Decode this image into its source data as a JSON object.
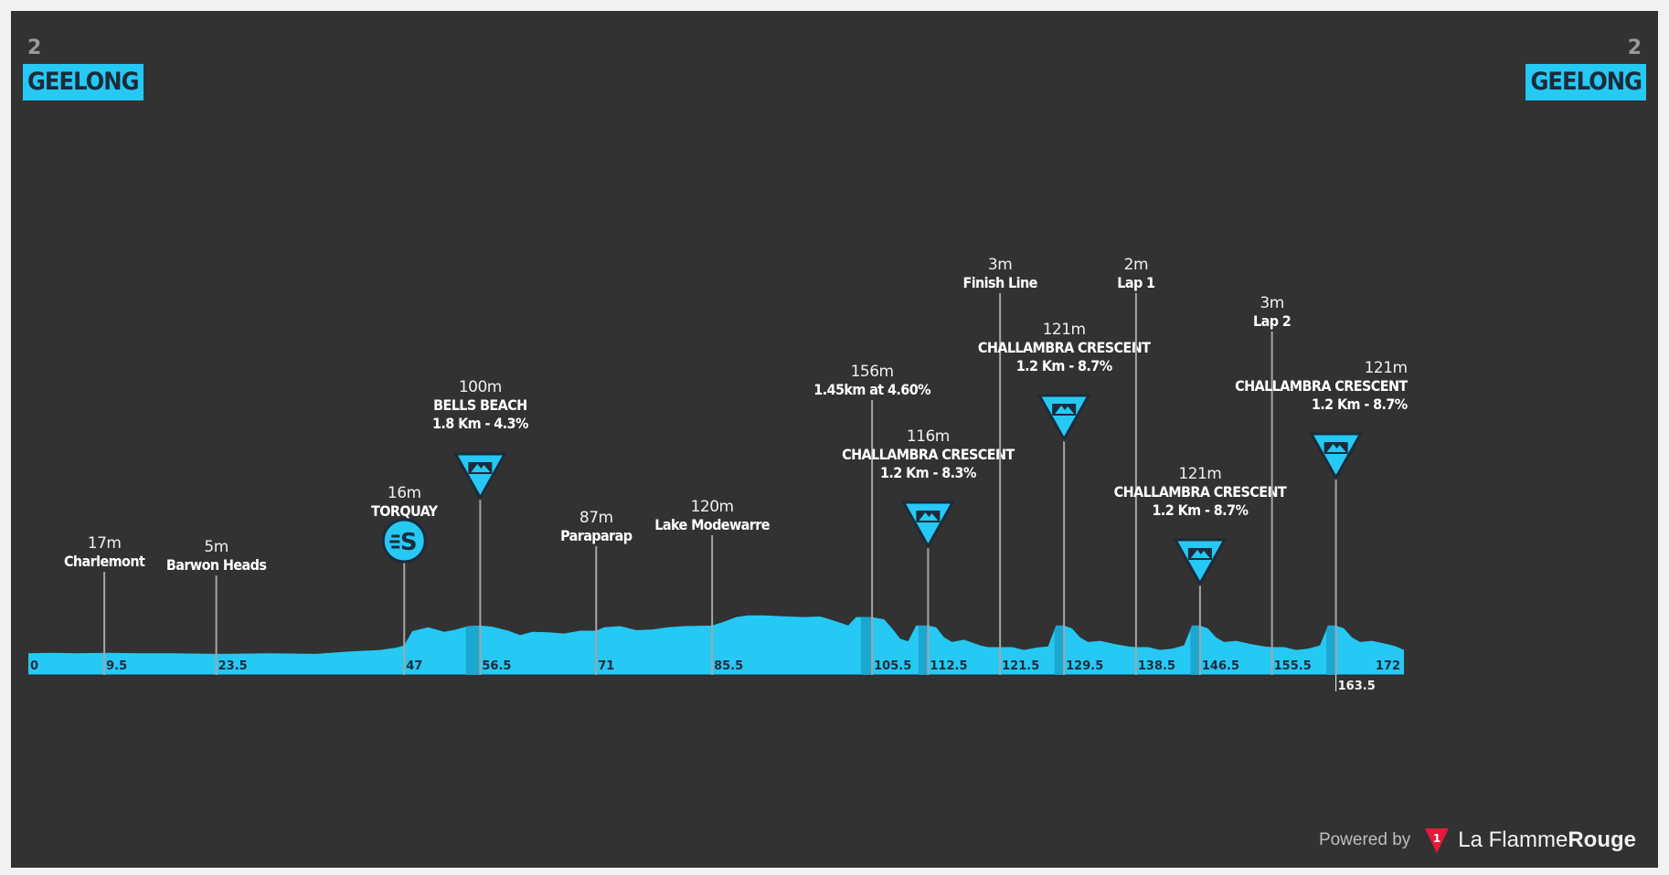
{
  "header": {
    "start_stage": "2",
    "start_city": "GEELONG",
    "finish_stage": "2",
    "finish_city": "GEELONG"
  },
  "footer": {
    "powered_by": "Powered by",
    "brand_light": "La Flamme",
    "brand_bold": "Rouge"
  },
  "colors": {
    "background": "#323232",
    "profile": "#25c9f4",
    "profile_dark": "#1aa3cc",
    "marker": "#a6a6a6",
    "badge": "#25c9f4"
  },
  "chart_data": {
    "type": "area",
    "title": "",
    "xlabel": "",
    "ylabel": "",
    "xlim": [
      0,
      172
    ],
    "ylim": [
      0,
      160
    ],
    "grid": false,
    "x_tick_labels": [
      {
        "x": 0,
        "label": "0"
      },
      {
        "x": 9.5,
        "label": "9.5"
      },
      {
        "x": 23.5,
        "label": "23.5"
      },
      {
        "x": 47,
        "label": "47"
      },
      {
        "x": 56.5,
        "label": "56.5"
      },
      {
        "x": 71,
        "label": "71"
      },
      {
        "x": 85.5,
        "label": "85.5"
      },
      {
        "x": 105.5,
        "label": "105.5"
      },
      {
        "x": 112.5,
        "label": "112.5"
      },
      {
        "x": 121.5,
        "label": "121.5"
      },
      {
        "x": 129.5,
        "label": "129.5"
      },
      {
        "x": 138.5,
        "label": "138.5"
      },
      {
        "x": 146.5,
        "label": "146.5"
      },
      {
        "x": 155.5,
        "label": "155.5"
      },
      {
        "x": 163.5,
        "label": "163.5"
      },
      {
        "x": 172,
        "label": "172"
      }
    ],
    "profile": [
      [
        0,
        6
      ],
      [
        3,
        7
      ],
      [
        6,
        6
      ],
      [
        9.5,
        7
      ],
      [
        14,
        6
      ],
      [
        18,
        6
      ],
      [
        23.5,
        5
      ],
      [
        30,
        6
      ],
      [
        36,
        5
      ],
      [
        40,
        9
      ],
      [
        44,
        12
      ],
      [
        46,
        16
      ],
      [
        47,
        20
      ],
      [
        48,
        45
      ],
      [
        50,
        52
      ],
      [
        52,
        44
      ],
      [
        53.5,
        48
      ],
      [
        55,
        54
      ],
      [
        56.5,
        55
      ],
      [
        58,
        53
      ],
      [
        60,
        46
      ],
      [
        61.5,
        38
      ],
      [
        63,
        44
      ],
      [
        65,
        43
      ],
      [
        67,
        41
      ],
      [
        69,
        46
      ],
      [
        71,
        46
      ],
      [
        72,
        52
      ],
      [
        74,
        54
      ],
      [
        76,
        47
      ],
      [
        78,
        48
      ],
      [
        80,
        52
      ],
      [
        82,
        54
      ],
      [
        85.5,
        55
      ],
      [
        87,
        62
      ],
      [
        88.5,
        70
      ],
      [
        90,
        73
      ],
      [
        92,
        73
      ],
      [
        95,
        71
      ],
      [
        97,
        70
      ],
      [
        99,
        71
      ],
      [
        100,
        67
      ],
      [
        101.5,
        60
      ],
      [
        102.5,
        55
      ],
      [
        103.5,
        70
      ],
      [
        105.5,
        70
      ],
      [
        107,
        66
      ],
      [
        108,
        50
      ],
      [
        109,
        32
      ],
      [
        110,
        27
      ],
      [
        111,
        55
      ],
      [
        112.5,
        55
      ],
      [
        113.5,
        52
      ],
      [
        114.5,
        34
      ],
      [
        115.5,
        26
      ],
      [
        117,
        30
      ],
      [
        119,
        20
      ],
      [
        120,
        17
      ],
      [
        121.5,
        17
      ],
      [
        123,
        17
      ],
      [
        124.5,
        12
      ],
      [
        126,
        16
      ],
      [
        127.5,
        18
      ],
      [
        128.5,
        55
      ],
      [
        129.5,
        55
      ],
      [
        130.5,
        50
      ],
      [
        131.5,
        34
      ],
      [
        132.5,
        26
      ],
      [
        134,
        28
      ],
      [
        136,
        22
      ],
      [
        137.5,
        18
      ],
      [
        138.5,
        17
      ],
      [
        140,
        17
      ],
      [
        141.5,
        12
      ],
      [
        143,
        14
      ],
      [
        144.5,
        20
      ],
      [
        145.5,
        55
      ],
      [
        146.5,
        55
      ],
      [
        147.5,
        50
      ],
      [
        148.5,
        34
      ],
      [
        149.5,
        26
      ],
      [
        151,
        28
      ],
      [
        153,
        22
      ],
      [
        154.5,
        18
      ],
      [
        155.5,
        17
      ],
      [
        157,
        17
      ],
      [
        158.5,
        12
      ],
      [
        160,
        14
      ],
      [
        161.5,
        20
      ],
      [
        162.5,
        55
      ],
      [
        163.5,
        55
      ],
      [
        164.5,
        50
      ],
      [
        165.5,
        34
      ],
      [
        166.5,
        26
      ],
      [
        168,
        28
      ],
      [
        170,
        22
      ],
      [
        171,
        18
      ],
      [
        172,
        12
      ]
    ],
    "climbs": [
      {
        "x_start": 54.7,
        "x_end": 56.5
      },
      {
        "x_start": 104.1,
        "x_end": 105.5
      },
      {
        "x_start": 111.3,
        "x_end": 112.5
      },
      {
        "x_start": 128.3,
        "x_end": 129.5
      },
      {
        "x_start": 145.3,
        "x_end": 146.5
      },
      {
        "x_start": 162.3,
        "x_end": 163.5
      }
    ],
    "points": [
      {
        "km": 9.5,
        "elev": "17m",
        "lines": [
          "Charlemont"
        ],
        "icon": "none"
      },
      {
        "km": 23.5,
        "elev": "5m",
        "lines": [
          "Barwon Heads"
        ],
        "icon": "none"
      },
      {
        "km": 47,
        "elev": "16m",
        "lines": [
          "TORQUAY"
        ],
        "icon": "sprint"
      },
      {
        "km": 56.5,
        "elev": "100m",
        "lines": [
          "BELLS BEACH",
          "1.8 Km - 4.3%"
        ],
        "icon": "climb"
      },
      {
        "km": 71,
        "elev": "87m",
        "lines": [
          "Paraparap"
        ],
        "icon": "none"
      },
      {
        "km": 85.5,
        "elev": "120m",
        "lines": [
          "Lake Modewarre"
        ],
        "icon": "none"
      },
      {
        "km": 105.5,
        "elev": "156m",
        "lines": [
          "1.45km at 4.60%"
        ],
        "icon": "none"
      },
      {
        "km": 112.5,
        "elev": "116m",
        "lines": [
          "CHALLAMBRA CRESCENT",
          "1.2 Km - 8.3%"
        ],
        "icon": "climb"
      },
      {
        "km": 121.5,
        "elev": "3m",
        "lines": [
          "Finish Line"
        ],
        "icon": "none"
      },
      {
        "km": 129.5,
        "elev": "121m",
        "lines": [
          "CHALLAMBRA CRESCENT",
          "1.2 Km - 8.7%"
        ],
        "icon": "climb"
      },
      {
        "km": 138.5,
        "elev": "2m",
        "lines": [
          "Lap 1"
        ],
        "icon": "none"
      },
      {
        "km": 146.5,
        "elev": "121m",
        "lines": [
          "CHALLAMBRA CRESCENT",
          "1.2 Km - 8.7%"
        ],
        "icon": "climb"
      },
      {
        "km": 155.5,
        "elev": "3m",
        "lines": [
          "Lap 2"
        ],
        "icon": "none"
      },
      {
        "km": 163.5,
        "elev": "121m",
        "lines": [
          "CHALLAMBRA CRESCENT",
          "1.2 Km - 8.7%"
        ],
        "icon": "climb"
      }
    ]
  }
}
